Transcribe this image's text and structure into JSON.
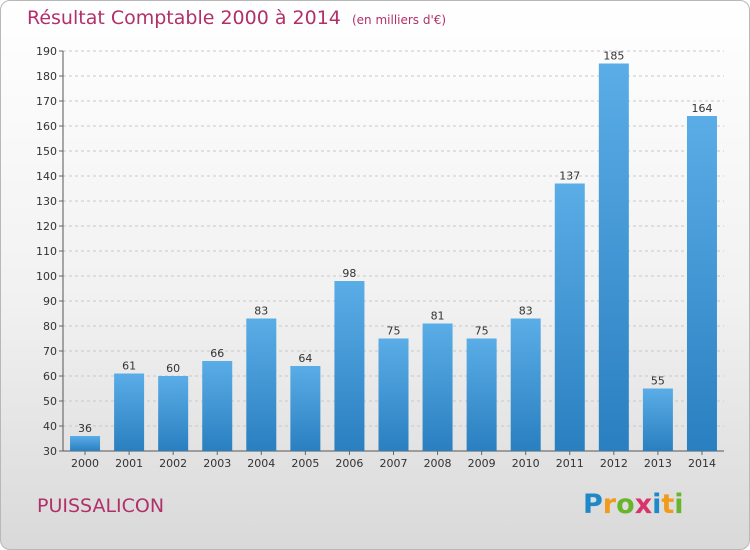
{
  "title": "Résultat Comptable 2000 à 2014",
  "unit": "(en milliers d'€)",
  "commune": "PUISSALICON",
  "logo": {
    "letters": [
      "P",
      "r",
      "o",
      "x",
      "i",
      "t",
      "i"
    ],
    "colors": [
      "#1e88c8",
      "#f29a1c",
      "#6ab42d",
      "#d8336b",
      "#1e88c8",
      "#f29a1c",
      "#6ab42d"
    ]
  },
  "colors": {
    "bar_top": "#5aade6",
    "bar_bottom": "#2a7fc0",
    "title": "#b1306a",
    "grid": "#c8c8c8"
  },
  "chart_data": {
    "type": "bar",
    "title": "Résultat Comptable 2000 à 2014",
    "subtitle": "(en milliers d'€)",
    "categories": [
      "2000",
      "2001",
      "2002",
      "2003",
      "2004",
      "2005",
      "2006",
      "2007",
      "2008",
      "2009",
      "2010",
      "2011",
      "2012",
      "2013",
      "2014"
    ],
    "values": [
      36,
      61,
      60,
      66,
      83,
      64,
      98,
      75,
      81,
      75,
      83,
      137,
      185,
      55,
      164
    ],
    "ylim": [
      30,
      190
    ],
    "yticks": [
      30,
      40,
      50,
      60,
      70,
      80,
      90,
      100,
      110,
      120,
      130,
      140,
      150,
      160,
      170,
      180,
      190
    ],
    "grid": true,
    "data_labels": true
  }
}
